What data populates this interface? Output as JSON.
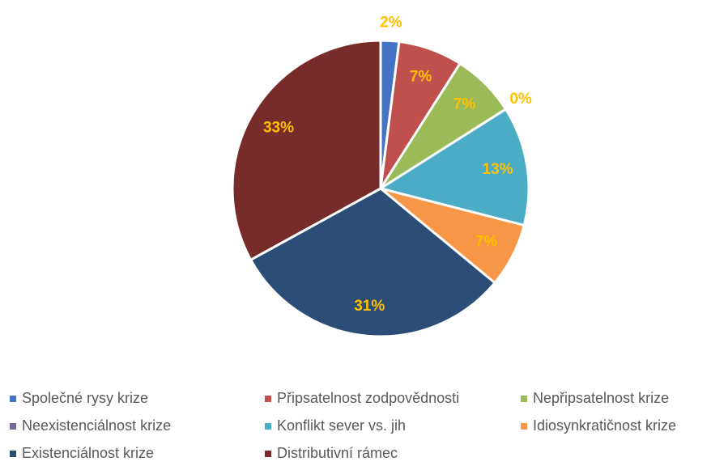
{
  "chart_data": {
    "type": "pie",
    "categories": [
      "Společné rysy krize",
      "Připsatelnost zodpovědnosti",
      "Nepřipsatelnost krize",
      "Neexistenciálnost krize",
      "Konflikt sever vs. jih",
      "Idiosynkratičnost krize",
      "Existenciálnost krize",
      "Distributivní rámec"
    ],
    "values": [
      2,
      7,
      7,
      0,
      13,
      7,
      31,
      33
    ],
    "colors": [
      "#4472c4",
      "#c0504d",
      "#9bbb59",
      "#8064a2",
      "#4bacc6",
      "#f79646",
      "#2c4d75",
      "#772c2a"
    ],
    "value_labels": [
      "2%",
      "7%",
      "7%",
      "0%",
      "13%",
      "7%",
      "31%",
      "33%"
    ],
    "legend": "bottom"
  }
}
